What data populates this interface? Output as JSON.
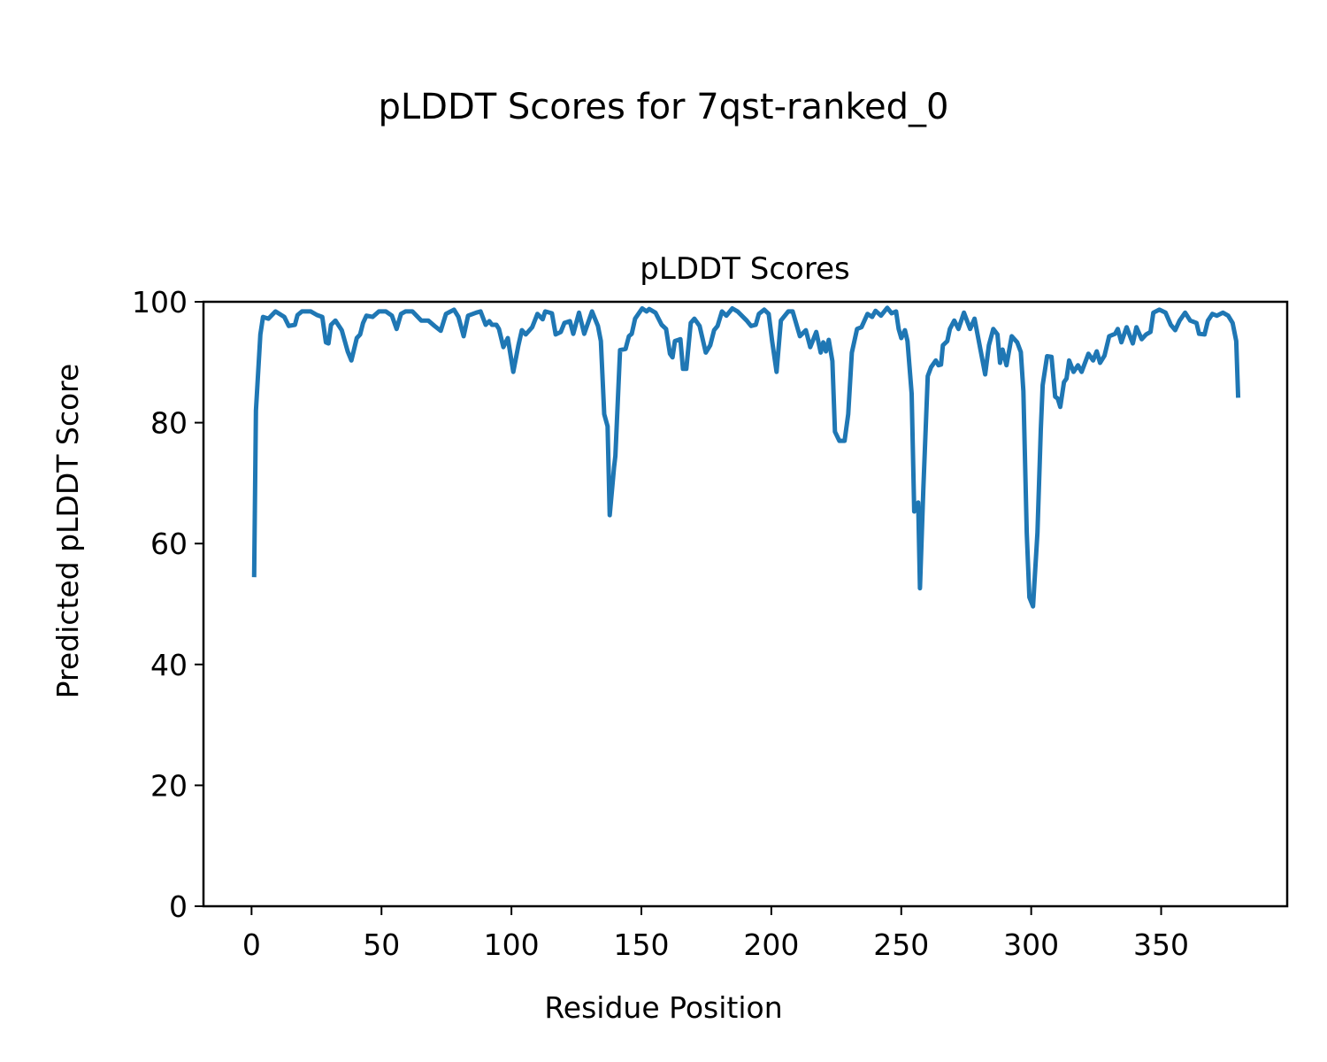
{
  "chart_data": {
    "type": "line",
    "title": "pLDDT Scores for 7qst-ranked_0",
    "subtitle": "pLDDT Scores",
    "xlabel": "Residue Position",
    "ylabel": "Predicted pLDDT Score",
    "xlim": [
      -18.5,
      398.5
    ],
    "ylim": [
      0,
      100
    ],
    "xticks": [
      0,
      50,
      100,
      150,
      200,
      250,
      300,
      350
    ],
    "yticks": [
      0,
      20,
      40,
      60,
      80,
      100
    ],
    "grid": false,
    "color": "#1f77b4",
    "points": [
      [
        1,
        54.8
      ],
      [
        1.7,
        82
      ],
      [
        3.4,
        94.6
      ],
      [
        4.4,
        97.5
      ],
      [
        6.5,
        97.2
      ],
      [
        9.2,
        98.4
      ],
      [
        12.6,
        97.5
      ],
      [
        14.3,
        96
      ],
      [
        16.7,
        96.2
      ],
      [
        17.7,
        97.8
      ],
      [
        19.4,
        98.4
      ],
      [
        22.8,
        98.4
      ],
      [
        25.2,
        97.8
      ],
      [
        27.2,
        97.5
      ],
      [
        28.6,
        93.3
      ],
      [
        29.6,
        93.1
      ],
      [
        30.6,
        96.2
      ],
      [
        32.3,
        96.9
      ],
      [
        34.7,
        95.3
      ],
      [
        37,
        91.8
      ],
      [
        38.4,
        90.3
      ],
      [
        40.5,
        94
      ],
      [
        41.8,
        94.6
      ],
      [
        42.9,
        96.5
      ],
      [
        44.2,
        97.7
      ],
      [
        46.6,
        97.5
      ],
      [
        49,
        98.4
      ],
      [
        51.7,
        98.4
      ],
      [
        54,
        97.7
      ],
      [
        55.8,
        95.5
      ],
      [
        57.5,
        98
      ],
      [
        59.2,
        98.4
      ],
      [
        61.9,
        98.4
      ],
      [
        65.3,
        96.9
      ],
      [
        68,
        96.9
      ],
      [
        70.4,
        96
      ],
      [
        72.8,
        95.2
      ],
      [
        74.8,
        98
      ],
      [
        77.9,
        98.7
      ],
      [
        79.6,
        97.5
      ],
      [
        81.6,
        94.3
      ],
      [
        83.3,
        97.7
      ],
      [
        86.4,
        98.2
      ],
      [
        88.1,
        98.4
      ],
      [
        90.1,
        96.2
      ],
      [
        91.5,
        96.8
      ],
      [
        92.5,
        96.2
      ],
      [
        94.2,
        96.2
      ],
      [
        95.2,
        95.5
      ],
      [
        96.9,
        92.5
      ],
      [
        98.6,
        94
      ],
      [
        100.7,
        88.4
      ],
      [
        102.7,
        92.8
      ],
      [
        104,
        95.3
      ],
      [
        105.5,
        94.6
      ],
      [
        108,
        95.8
      ],
      [
        110,
        98
      ],
      [
        112,
        97.1
      ],
      [
        113,
        98.4
      ],
      [
        115.6,
        98.1
      ],
      [
        117,
        94.6
      ],
      [
        119,
        95
      ],
      [
        120.4,
        96.5
      ],
      [
        122.5,
        96.8
      ],
      [
        123.8,
        94.7
      ],
      [
        126,
        98.2
      ],
      [
        128,
        94.7
      ],
      [
        131,
        98.4
      ],
      [
        133.3,
        96
      ],
      [
        134.4,
        93.5
      ],
      [
        135.7,
        81.4
      ],
      [
        137,
        79.4
      ],
      [
        137.8,
        64.7
      ],
      [
        139.5,
        72.6
      ],
      [
        140,
        74.5
      ],
      [
        141.8,
        92
      ],
      [
        143.9,
        92.2
      ],
      [
        145.2,
        94.3
      ],
      [
        146.3,
        94.7
      ],
      [
        147.6,
        97.2
      ],
      [
        150.3,
        98.9
      ],
      [
        152,
        98.4
      ],
      [
        153,
        98.8
      ],
      [
        155.4,
        98.2
      ],
      [
        157.8,
        96.2
      ],
      [
        159.5,
        95.5
      ],
      [
        161,
        91.4
      ],
      [
        162,
        90.8
      ],
      [
        162.9,
        93.5
      ],
      [
        165,
        93.8
      ],
      [
        166,
        88.9
      ],
      [
        167.3,
        88.9
      ],
      [
        169,
        96.5
      ],
      [
        170.4,
        97.2
      ],
      [
        172.4,
        96
      ],
      [
        174.8,
        91.6
      ],
      [
        176.5,
        92.8
      ],
      [
        178,
        95.3
      ],
      [
        179.3,
        96
      ],
      [
        181,
        98.4
      ],
      [
        182.7,
        97.7
      ],
      [
        185,
        98.9
      ],
      [
        187,
        98.4
      ],
      [
        190.5,
        96.9
      ],
      [
        192.2,
        96
      ],
      [
        194,
        96.2
      ],
      [
        195.2,
        98
      ],
      [
        197.3,
        98.7
      ],
      [
        199,
        98
      ],
      [
        200.3,
        93.5
      ],
      [
        202,
        88.4
      ],
      [
        203.7,
        96.9
      ],
      [
        206.5,
        98.4
      ],
      [
        208.2,
        98.4
      ],
      [
        211,
        94.3
      ],
      [
        213.3,
        95.3
      ],
      [
        215,
        92.5
      ],
      [
        217.3,
        95
      ],
      [
        219,
        91.6
      ],
      [
        220,
        93.3
      ],
      [
        221,
        91.8
      ],
      [
        222.1,
        93.7
      ],
      [
        223.5,
        90.2
      ],
      [
        224.5,
        78.5
      ],
      [
        226.2,
        77
      ],
      [
        228.2,
        77
      ],
      [
        229.6,
        81.4
      ],
      [
        231,
        91.6
      ],
      [
        233,
        95.5
      ],
      [
        234.7,
        95.8
      ],
      [
        237,
        98
      ],
      [
        238.8,
        97.5
      ],
      [
        240.1,
        98.5
      ],
      [
        242.2,
        97.7
      ],
      [
        244.6,
        99
      ],
      [
        246.3,
        98.1
      ],
      [
        248,
        98.4
      ],
      [
        249,
        95.5
      ],
      [
        250,
        94
      ],
      [
        251.4,
        95.3
      ],
      [
        252.4,
        93.5
      ],
      [
        254,
        84.8
      ],
      [
        255,
        65.3
      ],
      [
        256.5,
        66.8
      ],
      [
        257.2,
        52.6
      ],
      [
        258.5,
        69
      ],
      [
        260.2,
        87.7
      ],
      [
        261.5,
        89.2
      ],
      [
        263.3,
        90.3
      ],
      [
        264.3,
        89.5
      ],
      [
        265.3,
        89.6
      ],
      [
        266,
        92.8
      ],
      [
        267.7,
        93.5
      ],
      [
        268.7,
        95.5
      ],
      [
        270.4,
        96.9
      ],
      [
        272,
        95.5
      ],
      [
        274.1,
        98.2
      ],
      [
        276.5,
        95.5
      ],
      [
        278.2,
        97.2
      ],
      [
        282.3,
        88
      ],
      [
        283.7,
        92.8
      ],
      [
        285.4,
        95.5
      ],
      [
        287,
        94.6
      ],
      [
        288,
        89.9
      ],
      [
        289,
        92.1
      ],
      [
        290.5,
        89.5
      ],
      [
        292.5,
        94.3
      ],
      [
        294.6,
        93.3
      ],
      [
        296,
        91.7
      ],
      [
        297,
        85.2
      ],
      [
        298.3,
        61.8
      ],
      [
        299.3,
        51.1
      ],
      [
        300.7,
        49.6
      ],
      [
        302.4,
        61.8
      ],
      [
        303.7,
        78.9
      ],
      [
        304.4,
        86.2
      ],
      [
        306.1,
        91
      ],
      [
        307.8,
        90.9
      ],
      [
        309.2,
        84.3
      ],
      [
        310.2,
        84
      ],
      [
        311.2,
        82.6
      ],
      [
        312.6,
        86.7
      ],
      [
        313.6,
        87.3
      ],
      [
        314.6,
        90.3
      ],
      [
        316.3,
        88.4
      ],
      [
        318,
        89.5
      ],
      [
        319.4,
        88.4
      ],
      [
        322,
        91.4
      ],
      [
        323.8,
        90.3
      ],
      [
        325.2,
        91.8
      ],
      [
        326.5,
        89.9
      ],
      [
        328.2,
        91.1
      ],
      [
        330,
        94.3
      ],
      [
        332.3,
        94.7
      ],
      [
        333.3,
        95.5
      ],
      [
        334.7,
        93.3
      ],
      [
        336.7,
        95.8
      ],
      [
        339.1,
        93.1
      ],
      [
        340.5,
        95.8
      ],
      [
        342.5,
        93.8
      ],
      [
        344.2,
        94.6
      ],
      [
        345.9,
        95
      ],
      [
        347,
        98.2
      ],
      [
        349.3,
        98.7
      ],
      [
        351.7,
        98.2
      ],
      [
        353.7,
        96.2
      ],
      [
        355.4,
        95.3
      ],
      [
        357.1,
        96.9
      ],
      [
        359.2,
        98.2
      ],
      [
        361.2,
        96.9
      ],
      [
        363.6,
        96.5
      ],
      [
        364.6,
        94.7
      ],
      [
        366.7,
        94.6
      ],
      [
        368,
        96.9
      ],
      [
        369.7,
        98
      ],
      [
        371.4,
        97.7
      ],
      [
        373.8,
        98.2
      ],
      [
        375.8,
        97.7
      ],
      [
        377.5,
        96.5
      ],
      [
        378.9,
        93.5
      ],
      [
        379.6,
        84.5
      ]
    ]
  }
}
